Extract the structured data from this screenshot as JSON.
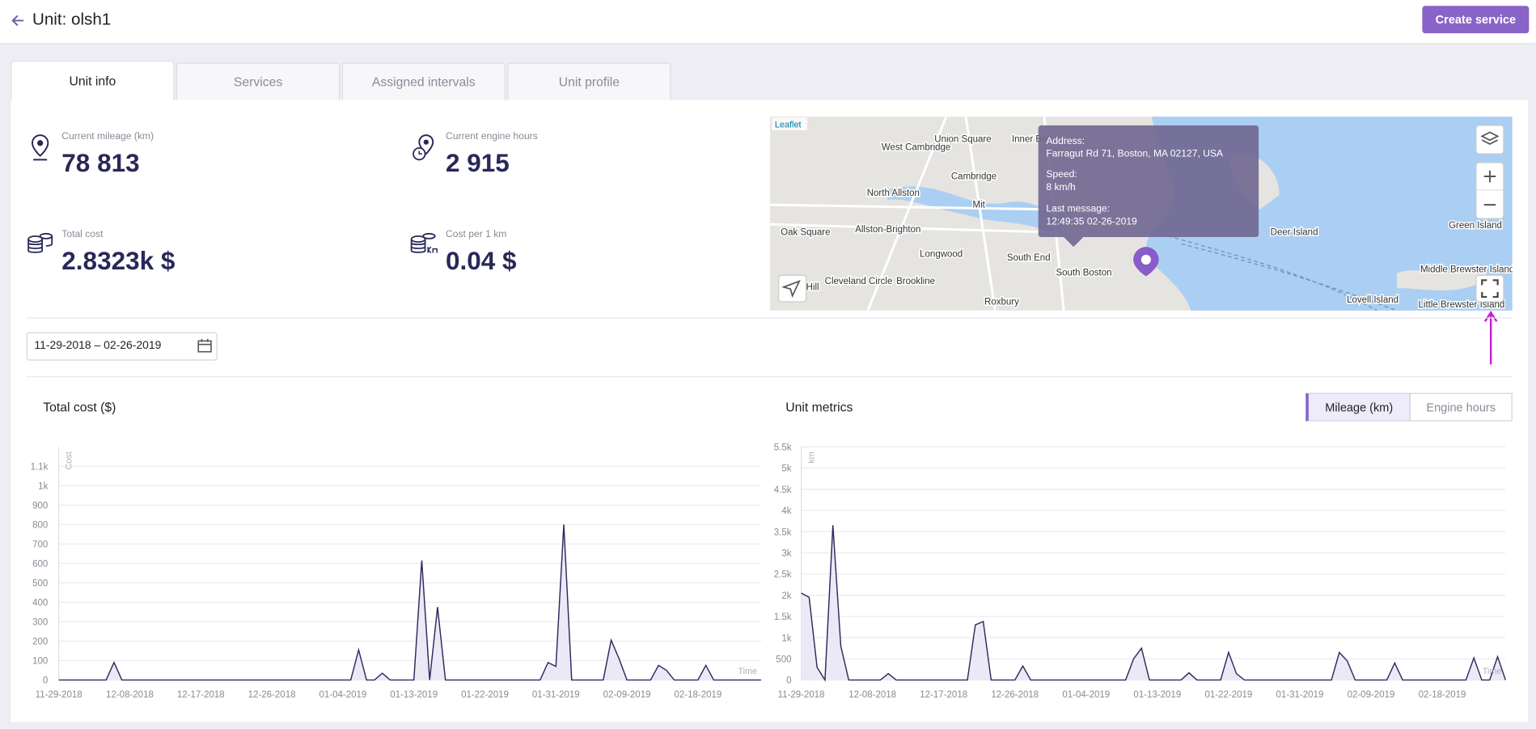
{
  "header": {
    "title": "Unit: olsh1",
    "button": "Create service"
  },
  "tabs": [
    "Unit info",
    "Services",
    "Assigned intervals",
    "Unit profile"
  ],
  "stats": [
    {
      "label": "Current mileage (km)",
      "value": "78 813"
    },
    {
      "label": "Current engine hours",
      "value": "2 915"
    },
    {
      "label": "Total cost",
      "value": "2.8323k $"
    },
    {
      "label": "Cost per 1 km",
      "value": "0.04 $"
    }
  ],
  "map": {
    "attribution": "Leaflet",
    "places": [
      "West Cambridge",
      "Union Square",
      "Inner Belt",
      "Cambridge",
      "North Allston",
      "Mit",
      "Oak Square",
      "Allston-Brighton",
      "Longwood",
      "South End",
      "South Boston",
      "Cleveland Circle",
      "Brookline",
      "Roxbury",
      "Deer Island",
      "Green Island",
      "Middle Brewster Island",
      "Lovell Island",
      "Little Brewster Island",
      "Hill"
    ],
    "tooltip": {
      "address_label": "Address:",
      "address": "Farragut Rd 71, Boston, MA 02127, USA",
      "speed_label": "Speed:",
      "speed": "8 km/h",
      "message_label": "Last message:",
      "message": "12:49:35 02-26-2019"
    }
  },
  "date_range": "11-29-2018 – 02-26-2019",
  "charts": [
    {
      "type": "line",
      "title": "Total cost ($)",
      "y_label": "Cost",
      "x_label": "Time",
      "color": "#2e2a5e",
      "fill": "#ece9f6",
      "categories": [
        "11-29-2018",
        null,
        null,
        null,
        null,
        null,
        null,
        null,
        null,
        "12-08-2018",
        null,
        null,
        null,
        null,
        null,
        null,
        null,
        null,
        "12-17-2018",
        null,
        null,
        null,
        null,
        null,
        null,
        null,
        null,
        "12-26-2018",
        null,
        null,
        null,
        null,
        null,
        null,
        null,
        null,
        "01-04-2019",
        null,
        null,
        null,
        null,
        null,
        null,
        null,
        null,
        "01-13-2019",
        null,
        null,
        null,
        null,
        null,
        null,
        null,
        null,
        "01-22-2019",
        null,
        null,
        null,
        null,
        null,
        null,
        null,
        null,
        "01-31-2019",
        null,
        null,
        null,
        null,
        null,
        null,
        null,
        null,
        "02-09-2019",
        null,
        null,
        null,
        null,
        null,
        null,
        null,
        null,
        "02-18-2019",
        null,
        null,
        null,
        null,
        null,
        null,
        null,
        null
      ],
      "values": [
        0,
        0,
        0,
        0,
        0,
        0,
        0,
        90,
        0,
        0,
        0,
        0,
        0,
        0,
        0,
        0,
        0,
        0,
        0,
        0,
        0,
        0,
        0,
        0,
        0,
        0,
        0,
        0,
        0,
        0,
        0,
        0,
        0,
        0,
        0,
        0,
        0,
        0,
        155,
        0,
        0,
        35,
        0,
        0,
        0,
        0,
        615,
        0,
        375,
        0,
        0,
        0,
        0,
        0,
        0,
        0,
        0,
        0,
        0,
        0,
        0,
        0,
        90,
        70,
        800,
        0,
        0,
        0,
        0,
        0,
        205,
        110,
        0,
        0,
        0,
        0,
        75,
        50,
        0,
        0,
        0,
        0,
        75,
        0,
        0,
        0,
        0,
        0,
        0,
        0
      ],
      "ylim": [
        0,
        1200
      ],
      "yticks": [
        0,
        100,
        200,
        300,
        400,
        500,
        600,
        700,
        800,
        900,
        {
          "value": 1000,
          "label": "1k"
        },
        {
          "value": 1100,
          "label": "1.1k"
        }
      ],
      "grid": true
    },
    {
      "type": "line",
      "title": "Unit metrics",
      "toggle": [
        "Mileage (km)",
        "Engine hours"
      ],
      "y_label": "km",
      "x_label": "Time",
      "color": "#2e2a5e",
      "fill": "#ece9f6",
      "categories": [
        "11-29-2018",
        null,
        null,
        null,
        null,
        null,
        null,
        null,
        null,
        "12-08-2018",
        null,
        null,
        null,
        null,
        null,
        null,
        null,
        null,
        "12-17-2018",
        null,
        null,
        null,
        null,
        null,
        null,
        null,
        null,
        "12-26-2018",
        null,
        null,
        null,
        null,
        null,
        null,
        null,
        null,
        "01-04-2019",
        null,
        null,
        null,
        null,
        null,
        null,
        null,
        null,
        "01-13-2019",
        null,
        null,
        null,
        null,
        null,
        null,
        null,
        null,
        "01-22-2019",
        null,
        null,
        null,
        null,
        null,
        null,
        null,
        null,
        "01-31-2019",
        null,
        null,
        null,
        null,
        null,
        null,
        null,
        null,
        "02-09-2019",
        null,
        null,
        null,
        null,
        null,
        null,
        null,
        null,
        "02-18-2019",
        null,
        null,
        null,
        null,
        null,
        null,
        null,
        null
      ],
      "values": [
        2050,
        1950,
        300,
        0,
        3650,
        800,
        0,
        0,
        0,
        0,
        0,
        150,
        0,
        0,
        0,
        0,
        0,
        0,
        0,
        0,
        0,
        0,
        1300,
        1380,
        0,
        0,
        0,
        0,
        330,
        0,
        0,
        0,
        0,
        0,
        0,
        0,
        0,
        0,
        0,
        0,
        0,
        0,
        500,
        750,
        0,
        0,
        0,
        0,
        0,
        170,
        0,
        0,
        0,
        0,
        650,
        150,
        0,
        0,
        0,
        0,
        0,
        0,
        0,
        0,
        0,
        0,
        0,
        0,
        650,
        450,
        0,
        0,
        0,
        0,
        0,
        400,
        0,
        0,
        0,
        0,
        0,
        0,
        0,
        0,
        0,
        520,
        0,
        0,
        550,
        0
      ],
      "ylim": [
        0,
        5500
      ],
      "yticks": [
        0,
        500,
        {
          "value": 1000,
          "label": "1k"
        },
        {
          "value": 1500,
          "label": "1.5k"
        },
        {
          "value": 2000,
          "label": "2k"
        },
        {
          "value": 2500,
          "label": "2.5k"
        },
        {
          "value": 3000,
          "label": "3k"
        },
        {
          "value": 3500,
          "label": "3.5k"
        },
        {
          "value": 4000,
          "label": "4k"
        },
        {
          "value": 4500,
          "label": "4.5k"
        },
        {
          "value": 5000,
          "label": "5k"
        },
        {
          "value": 5500,
          "label": "5.5k"
        }
      ],
      "grid": true
    }
  ]
}
